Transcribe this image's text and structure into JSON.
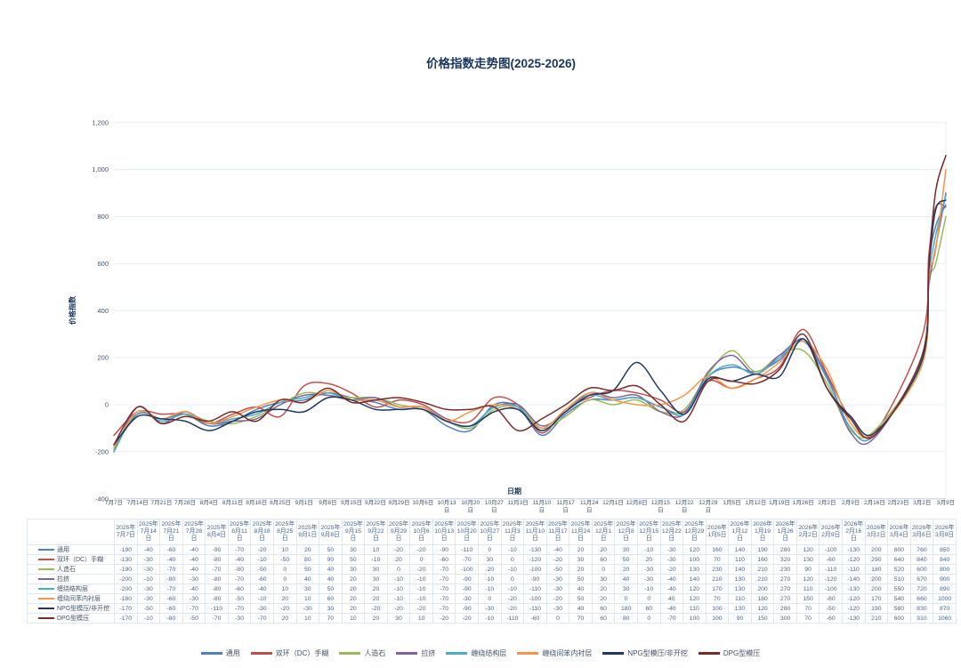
{
  "title": "价格指数走势图(2025-2026)",
  "chart_data": {
    "type": "line",
    "smooth": true,
    "grid": true,
    "legend_position": "bottom",
    "title": "价格指数走势图(2025-2026)",
    "xlabel": "日期",
    "ylabel": "价格指数",
    "ylim": [
      -400,
      1200
    ],
    "y_ticks": [
      "1,200",
      "1,000",
      "800",
      "600",
      "400",
      "200",
      "0",
      "-200",
      "-400"
    ],
    "y_tick_values": [
      1200,
      1000,
      800,
      600,
      400,
      200,
      0,
      -200,
      -400
    ],
    "x_axis_tick_labels": [
      "7月7日",
      "7月14日",
      "7月21日",
      "7月28日",
      "8月4日",
      "8月11日",
      "8月18日",
      "8月25日",
      "9月1日",
      "9月8日",
      "9月15日",
      "9月22日",
      "9月29日",
      "10月6日",
      "10月13日",
      "10月20日",
      "10月27日",
      "11月3日",
      "11月10日",
      "11月17日",
      "11月24日",
      "12月1日",
      "12月8日",
      "12月15日",
      "12月22日",
      "12月29日",
      "1月5日",
      "1月12日",
      "1月19日",
      "1月26日",
      "2月2日",
      "2月9日",
      "2月16日",
      "2月23日",
      "3月2日",
      "3月9日"
    ],
    "x_axis_tick_days": [
      0,
      7,
      14,
      21,
      28,
      35,
      42,
      49,
      56,
      63,
      70,
      77,
      84,
      91,
      98,
      105,
      112,
      119,
      126,
      133,
      140,
      147,
      154,
      161,
      168,
      175,
      182,
      189,
      196,
      203,
      210,
      217,
      224,
      231,
      238,
      245
    ],
    "categories": [
      "2025年7月7日",
      "2025年7月14日",
      "2025年7月21日",
      "2025年7月28日",
      "2025年8月4日",
      "2025年8月11日",
      "2025年8月18日",
      "2025年8月25日",
      "2025年9月1日",
      "2025年9月8日",
      "2025年9月15日",
      "2025年9月22日",
      "2025年9月29日",
      "2025年10月6日",
      "2025年10月13日",
      "2025年10月20日",
      "2025年10月27日",
      "2025年11月3日",
      "2025年11月10日",
      "2025年11月17日",
      "2025年11月24日",
      "2025年12月1日",
      "2025年12月8日",
      "2025年12月15日",
      "2025年12月22日",
      "2025年12月29日",
      "2026年1月5日",
      "2026年1月12日",
      "2026年1月19日",
      "2026年1月26日",
      "2026年2月2日",
      "2026年2月9日",
      "2026年2月16日",
      "2026年3月2日",
      "2026年3月4日",
      "2026年3月6日",
      "2026年3月9日"
    ],
    "category_days": [
      0,
      7,
      14,
      21,
      28,
      35,
      42,
      49,
      56,
      63,
      70,
      77,
      84,
      91,
      98,
      105,
      112,
      119,
      126,
      133,
      140,
      147,
      154,
      161,
      168,
      175,
      182,
      189,
      196,
      203,
      210,
      217,
      224,
      238,
      240,
      242,
      245
    ],
    "series": [
      {
        "name": "通用",
        "color": "#4F81BD",
        "values": [
          -190,
          -40,
          -60,
          -40,
          -90,
          -70,
          -20,
          10,
          20,
          50,
          30,
          10,
          -20,
          -20,
          -90,
          -110,
          0,
          -10,
          -130,
          -40,
          20,
          20,
          30,
          -10,
          -30,
          120,
          160,
          140,
          190,
          280,
          120,
          -100,
          -130,
          200,
          600,
          760,
          850
        ]
      },
      {
        "name": "双环（DC）手糊",
        "color": "#C0504D",
        "values": [
          -130,
          -30,
          -40,
          -40,
          -80,
          -40,
          -10,
          -50,
          80,
          90,
          50,
          -10,
          20,
          0,
          -60,
          -70,
          30,
          0,
          -120,
          -20,
          30,
          60,
          50,
          20,
          -30,
          100,
          70,
          110,
          160,
          320,
          130,
          -60,
          -120,
          290,
          640,
          840,
          840
        ]
      },
      {
        "name": "人造石",
        "color": "#9BBB59",
        "values": [
          -190,
          -30,
          -70,
          -40,
          -70,
          -80,
          -50,
          0,
          50,
          40,
          30,
          30,
          0,
          -20,
          -70,
          -100,
          -20,
          -10,
          -100,
          -50,
          20,
          0,
          20,
          -30,
          -20,
          130,
          230,
          140,
          210,
          230,
          90,
          -110,
          -110,
          180,
          520,
          600,
          800
        ]
      },
      {
        "name": "拉挤",
        "color": "#8064A2",
        "values": [
          -200,
          -10,
          -80,
          -30,
          -80,
          -70,
          -60,
          0,
          40,
          40,
          20,
          30,
          -10,
          -10,
          -70,
          -90,
          -10,
          0,
          -90,
          -30,
          50,
          30,
          40,
          -30,
          -40,
          140,
          210,
          130,
          210,
          270,
          120,
          -120,
          -140,
          200,
          510,
          670,
          900
        ]
      },
      {
        "name": "缠绕结构层",
        "color": "#4BACC6",
        "values": [
          -200,
          -30,
          -70,
          -40,
          -80,
          -60,
          -40,
          10,
          30,
          50,
          20,
          20,
          -10,
          -10,
          -70,
          -90,
          -10,
          -10,
          -110,
          -30,
          40,
          20,
          30,
          -10,
          -40,
          120,
          170,
          130,
          200,
          270,
          110,
          -100,
          -130,
          200,
          550,
          720,
          890
        ]
      },
      {
        "name": "缠绕间苯内衬层",
        "color": "#F79646",
        "values": [
          -180,
          -30,
          -60,
          -30,
          -80,
          -50,
          -10,
          20,
          10,
          60,
          20,
          20,
          -10,
          -10,
          -70,
          -30,
          0,
          -20,
          -100,
          -20,
          50,
          20,
          0,
          0,
          40,
          120,
          70,
          110,
          180,
          270,
          150,
          -80,
          -120,
          170,
          540,
          660,
          1000
        ]
      },
      {
        "name": "NPG型模压/非开挖",
        "color": "#1F3864",
        "values": [
          -170,
          -50,
          -60,
          -70,
          -110,
          -70,
          -30,
          -20,
          -30,
          30,
          20,
          -20,
          -20,
          -20,
          -70,
          -90,
          -30,
          -20,
          -110,
          -30,
          40,
          60,
          180,
          60,
          -40,
          110,
          100,
          130,
          120,
          280,
          70,
          -50,
          -120,
          190,
          580,
          830,
          870
        ]
      },
      {
        "name": "DPG型模压",
        "color": "#772C2A",
        "values": [
          -170,
          -10,
          -80,
          -50,
          -70,
          -30,
          -70,
          20,
          10,
          70,
          10,
          20,
          30,
          10,
          -20,
          -20,
          -10,
          -110,
          -60,
          0,
          70,
          60,
          80,
          0,
          -70,
          100,
          100,
          90,
          150,
          300,
          70,
          -60,
          -130,
          210,
          600,
          910,
          1060
        ]
      }
    ]
  }
}
